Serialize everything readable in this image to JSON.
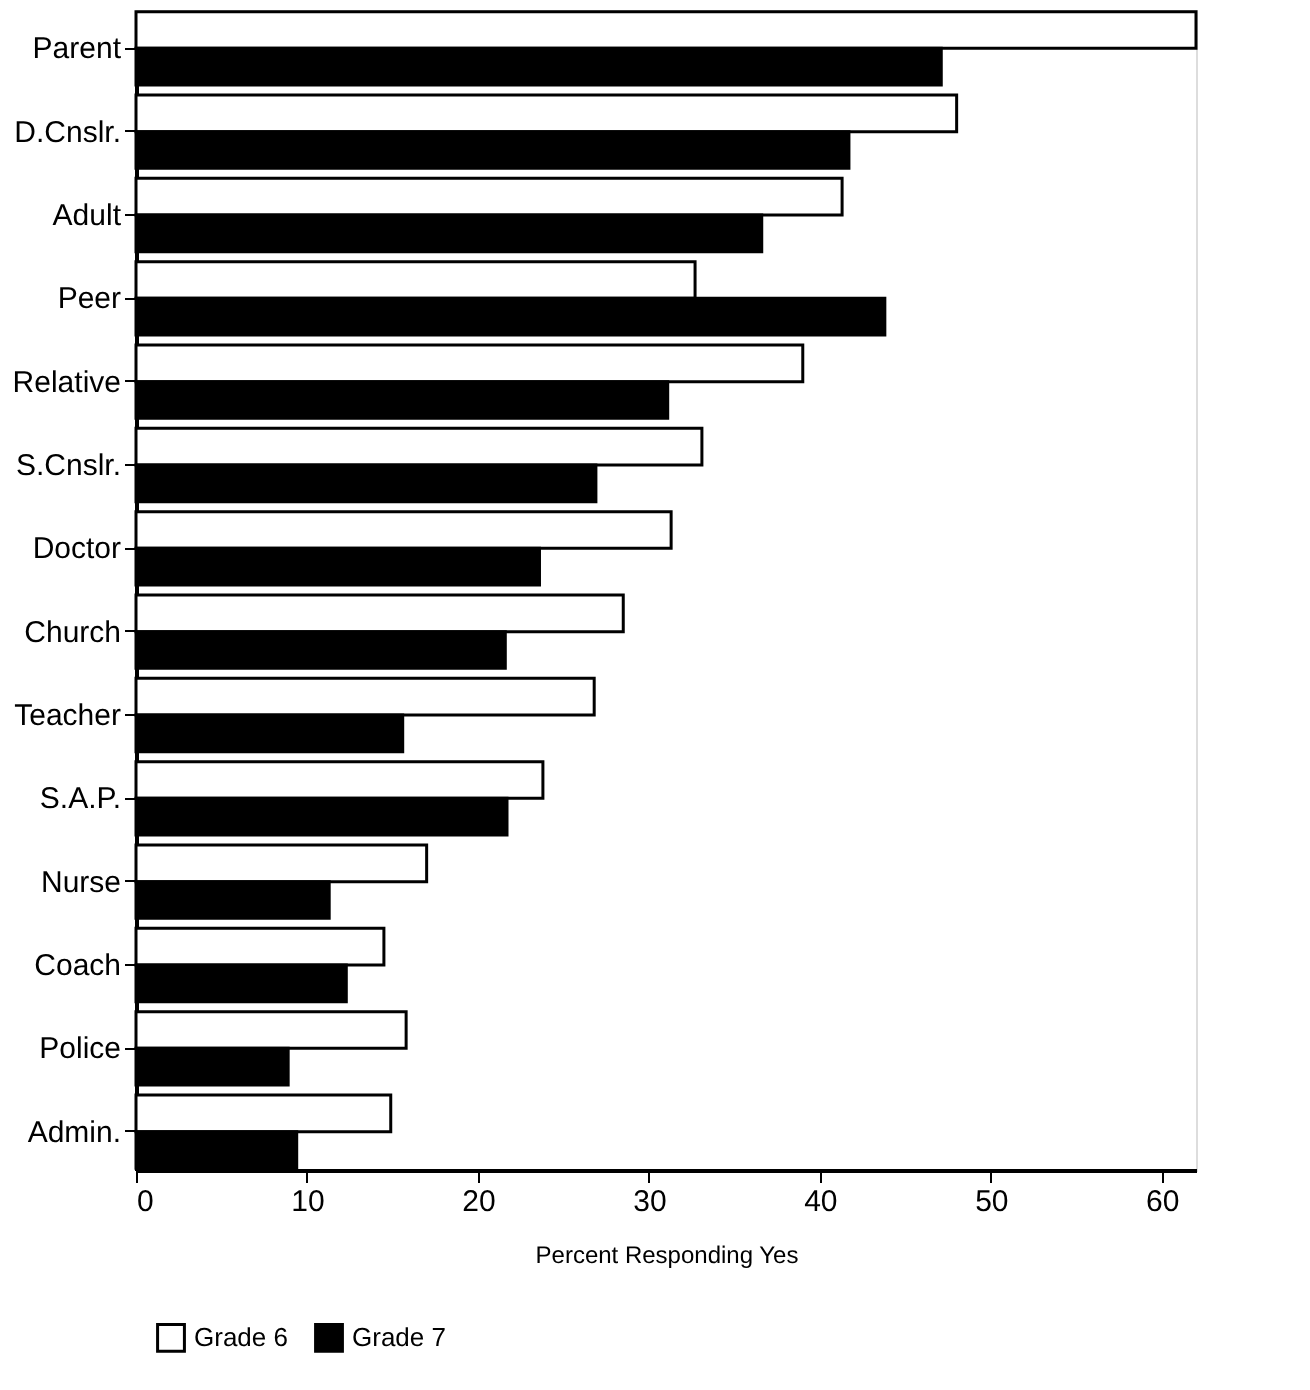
{
  "chart_data": {
    "type": "bar",
    "orientation": "horizontal",
    "xlabel": "Percent Responding Yes",
    "categories": [
      "Parent",
      "D.Cnslr.",
      "Adult",
      "Peer",
      "Relative",
      "S.Cnslr.",
      "Doctor",
      "Church",
      "Teacher",
      "S.A.P.",
      "Nurse",
      "Coach",
      "Police",
      "Admin."
    ],
    "series": [
      {
        "name": "Grade 6",
        "color": "#ffffff",
        "values": [
          62,
          48,
          41.3,
          32.7,
          39,
          33.1,
          31.3,
          28.5,
          26.8,
          23.8,
          17,
          14.5,
          15.8,
          14.9
        ]
      },
      {
        "name": "Grade 7",
        "color": "#000000",
        "values": [
          47.1,
          41.7,
          36.6,
          43.8,
          31.1,
          26.9,
          23.6,
          21.6,
          15.6,
          21.7,
          11.3,
          12.3,
          8.9,
          9.4
        ]
      }
    ],
    "xlim": [
      0,
      62
    ],
    "xticks": [
      0,
      10,
      20,
      30,
      40,
      50,
      60
    ],
    "grid": false,
    "legend": "bottom"
  }
}
